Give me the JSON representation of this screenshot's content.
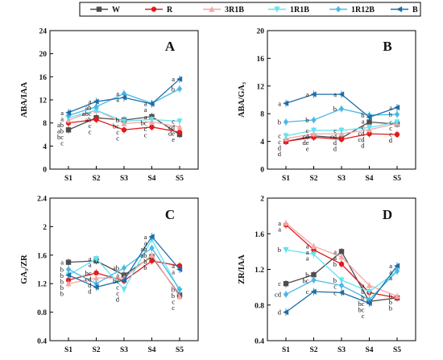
{
  "legend": [
    {
      "name": "W",
      "color": "#4d4d4d",
      "marker": "square"
    },
    {
      "name": "R",
      "color": "#e31a1c",
      "marker": "circle"
    },
    {
      "name": "3R1B",
      "color": "#f4a6a6",
      "marker": "triangle"
    },
    {
      "name": "1R1B",
      "color": "#5fe3f0",
      "marker": "triangle-down"
    },
    {
      "name": "1R12B",
      "color": "#4bb8e6",
      "marker": "diamond"
    },
    {
      "name": "B",
      "color": "#1f6ea8",
      "marker": "triangle-left"
    }
  ],
  "chart_data": [
    {
      "panel": "A",
      "type": "line",
      "categories": [
        "S1",
        "S2",
        "S3",
        "S4",
        "S5"
      ],
      "ylabel": "ABA/IAA",
      "ylim": [
        0,
        24
      ],
      "yticks": [
        0,
        4,
        8,
        12,
        16,
        20,
        24
      ],
      "series": [
        {
          "name": "W",
          "values": [
            6.8,
            8.9,
            8.5,
            9.1,
            6.0
          ],
          "labels": [
            "c",
            "c",
            "b",
            "a",
            "e"
          ]
        },
        {
          "name": "R",
          "values": [
            8.0,
            8.6,
            6.8,
            7.3,
            6.4
          ],
          "labels": [
            "bc",
            "c",
            "c",
            "c",
            "de"
          ]
        },
        {
          "name": "3R1B",
          "values": [
            8.5,
            10.2,
            7.9,
            8.2,
            7.3
          ],
          "labels": [
            "ab",
            "ab",
            "c",
            "c",
            "cd"
          ]
        },
        {
          "name": "1R1B",
          "values": [
            8.9,
            10.2,
            8.3,
            8.6,
            8.3
          ],
          "labels": [
            "ab",
            "abc",
            "bc",
            "bc",
            "c"
          ]
        },
        {
          "name": "1R12B",
          "values": [
            9.3,
            10.8,
            13.1,
            11.4,
            13.9
          ],
          "labels": [
            "a",
            "ab",
            "a",
            "a",
            "b"
          ]
        },
        {
          "name": "B",
          "values": [
            9.8,
            11.7,
            12.4,
            11.3,
            15.6
          ],
          "labels": [
            "a",
            "a",
            "a",
            "a",
            "a"
          ]
        }
      ]
    },
    {
      "panel": "B",
      "type": "line",
      "categories": [
        "S1",
        "S2",
        "S3",
        "S4",
        "S5"
      ],
      "ylabel": "ABA/GA₃",
      "ylim": [
        0,
        20
      ],
      "yticks": [
        0,
        4,
        8,
        12,
        16,
        20
      ],
      "series": [
        {
          "name": "W",
          "values": [
            4.0,
            4.8,
            4.5,
            6.8,
            6.5
          ],
          "labels": [
            "d",
            "de",
            "d",
            "c",
            "c"
          ]
        },
        {
          "name": "R",
          "values": [
            4.0,
            4.6,
            4.3,
            5.1,
            5.0
          ],
          "labels": [
            "d",
            "e",
            "d",
            "d",
            "d"
          ]
        },
        {
          "name": "3R1B",
          "values": [
            4.4,
            5.1,
            5.1,
            5.7,
            6.6
          ],
          "labels": [
            "c",
            "cd",
            "cd",
            "cd",
            "c"
          ]
        },
        {
          "name": "1R1B",
          "values": [
            4.8,
            5.6,
            5.6,
            6.0,
            6.8
          ],
          "labels": [
            "c",
            "c",
            "c",
            "cd",
            "c"
          ]
        },
        {
          "name": "1R12B",
          "values": [
            6.8,
            7.1,
            8.7,
            7.8,
            7.9
          ],
          "labels": [
            "b",
            "b",
            "b",
            "b",
            "b"
          ]
        },
        {
          "name": "B",
          "values": [
            9.5,
            10.8,
            10.8,
            7.5,
            8.9
          ],
          "labels": [
            "a",
            "a",
            "a",
            "a",
            "a"
          ]
        }
      ]
    },
    {
      "panel": "C",
      "type": "line",
      "categories": [
        "S1",
        "S2",
        "S3",
        "S4",
        "S5"
      ],
      "ylabel": "GA₃/ZR",
      "ylim": [
        0.4,
        2.4
      ],
      "yticks": [
        0.4,
        0.8,
        1.2,
        1.6,
        2.0,
        2.4
      ],
      "series": [
        {
          "name": "W",
          "values": [
            1.5,
            1.52,
            1.32,
            1.58,
            1.04
          ],
          "labels": [
            "a",
            "a",
            "a",
            "b",
            "c"
          ]
        },
        {
          "name": "R",
          "values": [
            1.25,
            1.35,
            1.24,
            1.52,
            1.45
          ],
          "labels": [
            "b",
            "bc",
            "c",
            "b",
            "a"
          ]
        },
        {
          "name": "3R1B",
          "values": [
            1.2,
            1.28,
            1.28,
            1.6,
            1.02
          ],
          "labels": [
            "b",
            "cd",
            "bc",
            "ab",
            "c"
          ]
        },
        {
          "name": "1R1B",
          "values": [
            1.32,
            1.55,
            1.12,
            1.82,
            1.1
          ],
          "labels": [
            "b",
            "a",
            "d",
            "a",
            "b"
          ]
        },
        {
          "name": "1R12B",
          "values": [
            1.4,
            1.2,
            1.42,
            1.7,
            1.12
          ],
          "labels": [
            "b",
            "d",
            "ab",
            "ab",
            "b"
          ]
        },
        {
          "name": "B",
          "values": [
            1.32,
            1.15,
            1.25,
            1.86,
            1.4
          ],
          "labels": [
            "b",
            "d",
            "c",
            "a",
            "a"
          ]
        }
      ]
    },
    {
      "panel": "D",
      "type": "line",
      "categories": [
        "S1",
        "S2",
        "S3",
        "S4",
        "S5"
      ],
      "ylabel": "ZR/IAA",
      "ylim": [
        0.4,
        2.0
      ],
      "yticks": [
        0.4,
        0.8,
        1.2,
        1.6,
        2.0
      ],
      "series": [
        {
          "name": "W",
          "values": [
            1.04,
            1.14,
            1.4,
            0.84,
            0.88
          ],
          "labels": [
            "c",
            "b",
            "a",
            "bc",
            "b"
          ]
        },
        {
          "name": "R",
          "values": [
            1.7,
            1.42,
            1.26,
            0.94,
            0.88
          ],
          "labels": [
            "a",
            "a",
            "b",
            "b",
            "b"
          ]
        },
        {
          "name": "3R1B",
          "values": [
            1.72,
            1.46,
            1.34,
            1.02,
            0.9
          ],
          "labels": [
            "a",
            "a",
            "a",
            "a",
            "b"
          ]
        },
        {
          "name": "1R1B",
          "values": [
            1.42,
            1.37,
            1.08,
            0.95,
            1.18
          ],
          "labels": [
            "b",
            "a",
            "b",
            "b",
            "a"
          ]
        },
        {
          "name": "1R12B",
          "values": [
            0.92,
            1.08,
            1.02,
            0.86,
            1.18
          ],
          "labels": [
            "cd",
            "bc",
            "c",
            "bc",
            "a"
          ]
        },
        {
          "name": "B",
          "values": [
            0.72,
            0.95,
            0.94,
            0.82,
            1.24
          ],
          "labels": [
            "d",
            "c",
            "c",
            "c",
            "a"
          ]
        }
      ]
    }
  ]
}
